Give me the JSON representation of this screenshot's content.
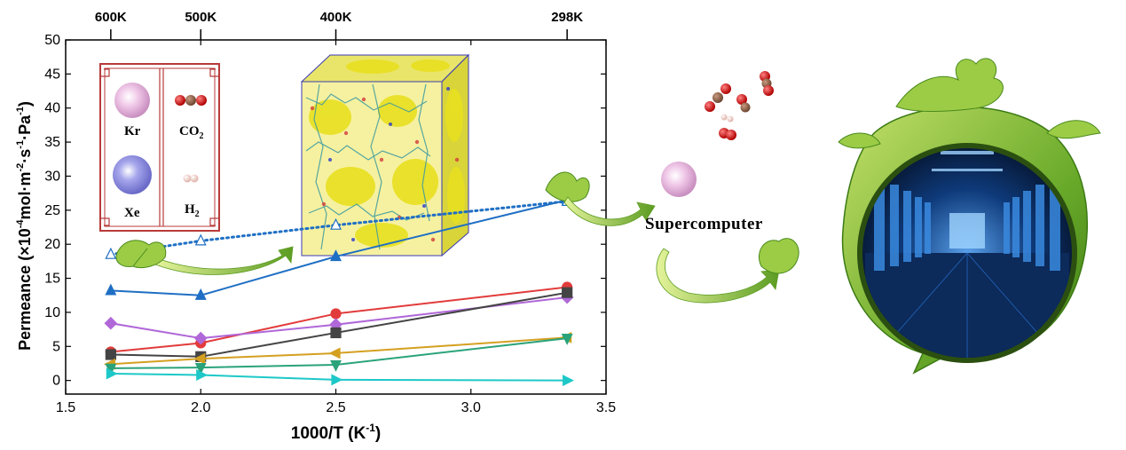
{
  "chart_data": {
    "type": "line",
    "xlabel_base": "1000/T (K",
    "xlabel_sup": "-1",
    "xlabel_end": ")",
    "ylabel_parts": [
      "Permeance (×10",
      "-4",
      "mol·m",
      "-2",
      "·s",
      "-1",
      "·Pa",
      "-1",
      ")"
    ],
    "xlim": [
      1.5,
      3.5
    ],
    "ylim": [
      -2,
      50
    ],
    "x_ticks": [
      1.5,
      2.0,
      2.5,
      3.0,
      3.5
    ],
    "x_tick_labels": [
      "1.5",
      "2.0",
      "2.5",
      "3.0",
      "3.5"
    ],
    "y_ticks": [
      0,
      5,
      10,
      15,
      20,
      25,
      30,
      35,
      40,
      45,
      50
    ],
    "y_tick_labels": [
      "0",
      "5",
      "10",
      "15",
      "20",
      "25",
      "30",
      "35",
      "40",
      "45",
      "50"
    ],
    "top_ticks": [
      1.667,
      2.0,
      2.5,
      3.356
    ],
    "top_tick_labels": [
      "600K",
      "500K",
      "400K",
      "298K"
    ],
    "grid": false,
    "series": [
      {
        "color": "#1f6fc4",
        "marker": "triangle-up",
        "style": "solid",
        "x": [
          1.667,
          2.0,
          2.5,
          3.356
        ],
        "y": [
          13.2,
          12.5,
          18.2,
          26.5
        ]
      },
      {
        "color": "#1f6fc4",
        "marker": "triangle-up-open",
        "style": "dotted",
        "x": [
          1.667,
          2.0,
          2.5,
          3.356
        ],
        "y": [
          18.5,
          20.5,
          22.8,
          26.3
        ]
      },
      {
        "color": "#e23b3b",
        "marker": "circle",
        "style": "solid",
        "x": [
          1.667,
          2.0,
          2.5,
          3.356
        ],
        "y": [
          4.2,
          5.5,
          9.8,
          13.7
        ]
      },
      {
        "color": "#b068d8",
        "marker": "diamond",
        "style": "solid",
        "x": [
          1.667,
          2.0,
          2.5,
          3.356
        ],
        "y": [
          8.4,
          6.2,
          8.2,
          12.2
        ]
      },
      {
        "color": "#444444",
        "marker": "square",
        "style": "solid",
        "x": [
          1.667,
          2.0,
          2.5,
          3.356
        ],
        "y": [
          3.8,
          3.5,
          7.0,
          12.9
        ]
      },
      {
        "color": "#d4a020",
        "marker": "triangle-left",
        "style": "solid",
        "x": [
          1.667,
          2.0,
          2.5,
          3.356
        ],
        "y": [
          2.4,
          3.2,
          4.0,
          6.3
        ]
      },
      {
        "color": "#2aa37a",
        "marker": "triangle-down",
        "style": "solid",
        "x": [
          1.667,
          2.0,
          2.5,
          3.356
        ],
        "y": [
          1.8,
          1.9,
          2.3,
          6.2
        ]
      },
      {
        "color": "#1ec8c8",
        "marker": "triangle-right",
        "style": "solid",
        "x": [
          1.667,
          2.0,
          2.5,
          3.356
        ],
        "y": [
          1.0,
          0.8,
          0.1,
          0.0
        ]
      }
    ]
  },
  "legend": {
    "kr": "Kr",
    "co2_base": "CO",
    "co2_sub": "2",
    "xe": "Xe",
    "h2_base": "H",
    "h2_sub": "2"
  },
  "supercomputer_label": "Supercomputer",
  "colors": {
    "leaf": "#8cc63f",
    "leaf_dark": "#4a8a1c",
    "frame": "#b83a3a",
    "mof_yellow": "#f2ef3a",
    "server_blue": "#2a7cd6"
  }
}
